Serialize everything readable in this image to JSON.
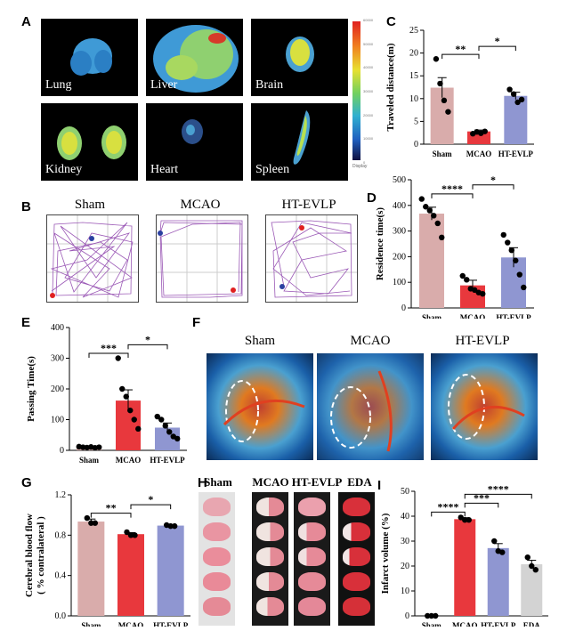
{
  "panels": {
    "A": "A",
    "B": "B",
    "C": "C",
    "D": "D",
    "E": "E",
    "F": "F",
    "G": "G",
    "H": "H",
    "I": "I"
  },
  "organs": [
    "Lung",
    "Liver",
    "Brain",
    "Kidney",
    "Heart",
    "Spleen"
  ],
  "colorbar_ticks": [
    "60000",
    "50000",
    "40000",
    "30000",
    "20000",
    "10000",
    "0"
  ],
  "colorbar_label": "Display",
  "track_groups": [
    "Sham",
    "MCAO",
    "HT-EVLP"
  ],
  "flow_groups": [
    "Sham",
    "MCAO",
    "HT-EVLP"
  ],
  "ttc_groups": [
    "Sham",
    "MCAO",
    "HT-EVLP",
    "EDA"
  ],
  "colors": {
    "sham": "#d9acab",
    "mcao": "#e8383d",
    "htevlp": "#8f96d1",
    "eda": "#d3d3d3"
  },
  "chart_data": [
    {
      "id": "C",
      "type": "bar",
      "title": "",
      "categories": [
        "Sham",
        "MCAO",
        "HT-EVLP"
      ],
      "values": [
        12.4,
        2.8,
        10.6
      ],
      "errors": [
        2.2,
        0.3,
        0.8
      ],
      "points": [
        [
          18.7,
          13.3,
          9.6,
          7.1
        ],
        [
          2.3,
          2.7,
          2.4,
          2.8
        ],
        [
          12.0,
          11.0,
          9.2,
          9.8
        ]
      ],
      "ylabel": "Traveled distance(m)",
      "xlabel": "",
      "ylim": [
        0,
        25
      ],
      "yticks": [
        0,
        5,
        10,
        15,
        20,
        25
      ],
      "sig": [
        {
          "from": 0,
          "to": 1,
          "label": "**"
        },
        {
          "from": 1,
          "to": 2,
          "label": "*"
        }
      ]
    },
    {
      "id": "D",
      "type": "bar",
      "title": "",
      "categories": [
        "Sham",
        "MCAO",
        "HT-EVLP"
      ],
      "values": [
        368,
        88,
        197
      ],
      "errors": [
        25,
        20,
        38
      ],
      "points": [
        [
          425,
          395,
          380,
          360,
          330,
          275
        ],
        [
          125,
          110,
          75,
          70,
          60,
          55
        ],
        [
          285,
          255,
          225,
          185,
          130,
          80
        ]
      ],
      "ylabel": "Residence time(s)",
      "xlabel": "",
      "ylim": [
        0,
        500
      ],
      "yticks": [
        0,
        100,
        200,
        300,
        400,
        500
      ],
      "sig": [
        {
          "from": 0,
          "to": 1,
          "label": "****"
        },
        {
          "from": 1,
          "to": 2,
          "label": "*"
        }
      ]
    },
    {
      "id": "E",
      "type": "bar",
      "title": "",
      "categories": [
        "Sham",
        "MCAO",
        "HT-EVLP"
      ],
      "values": [
        10,
        162,
        74
      ],
      "errors": [
        2,
        35,
        15
      ],
      "points": [
        [
          12,
          10,
          9,
          11,
          8,
          10
        ],
        [
          300,
          200,
          175,
          130,
          100,
          70
        ],
        [
          110,
          100,
          80,
          60,
          45,
          38
        ]
      ],
      "ylabel": "Passing Time(s)",
      "xlabel": "",
      "ylim": [
        0,
        400
      ],
      "yticks": [
        0,
        100,
        200,
        300,
        400
      ],
      "sig": [
        {
          "from": 0,
          "to": 1,
          "label": "***"
        },
        {
          "from": 1,
          "to": 2,
          "label": "*"
        }
      ]
    },
    {
      "id": "G",
      "type": "bar",
      "title": "",
      "categories": [
        "Sham",
        "MCAO",
        "HT-EVLP"
      ],
      "values": [
        0.935,
        0.81,
        0.895
      ],
      "errors": [
        0.025,
        0.015,
        0.005
      ],
      "points": [
        [
          0.97,
          0.92,
          0.92
        ],
        [
          0.83,
          0.8,
          0.8
        ],
        [
          0.9,
          0.89,
          0.89
        ]
      ],
      "ylabel": "Cerebral blood flow",
      "ylabel2": "( % contralateral )",
      "xlabel": "",
      "ylim": [
        0,
        1.2
      ],
      "yticks": [
        0.0,
        0.4,
        0.8,
        1.2
      ],
      "sig": [
        {
          "from": 0,
          "to": 1,
          "label": "**"
        },
        {
          "from": 1,
          "to": 2,
          "label": "*"
        }
      ]
    },
    {
      "id": "I",
      "type": "bar",
      "title": "",
      "categories": [
        "Sham",
        "MCAO",
        "HT-EVLP",
        "EDA"
      ],
      "values": [
        0,
        38.8,
        27.2,
        20.7
      ],
      "errors": [
        0,
        0.6,
        1.8,
        1.6
      ],
      "points": [
        [
          0,
          0,
          0
        ],
        [
          39.5,
          38.5,
          38.5
        ],
        [
          30.0,
          26.0,
          25.5
        ],
        [
          23.5,
          20.0,
          18.5
        ]
      ],
      "ylabel": "Infarct volume (%)",
      "xlabel": "",
      "ylim": [
        0,
        50
      ],
      "yticks": [
        0,
        10,
        20,
        30,
        40,
        50
      ],
      "sig": [
        {
          "from": 0,
          "to": 1,
          "label": "****"
        },
        {
          "from": 1,
          "to": 2,
          "label": "***"
        },
        {
          "from": 1,
          "to": 3,
          "label": "****"
        }
      ]
    }
  ]
}
